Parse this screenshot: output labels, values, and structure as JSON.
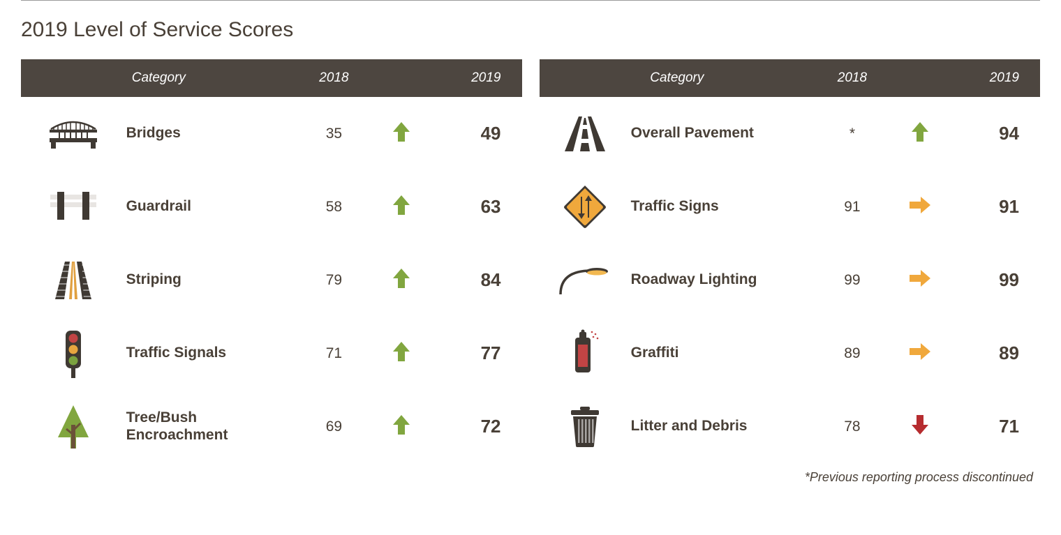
{
  "title": "2019 Level of Service Scores",
  "headers": {
    "category": "Category",
    "year1": "2018",
    "year2": "2019"
  },
  "colors": {
    "header_bg": "#4d4640",
    "header_text": "#ffffff",
    "text": "#494037",
    "up": "#81a63f",
    "flat": "#f0a83c",
    "down": "#b62c2f"
  },
  "left": [
    {
      "icon": "bridge",
      "name": "Bridges",
      "v1": "35",
      "trend": "up",
      "v2": "49"
    },
    {
      "icon": "guardrail",
      "name": "Guardrail",
      "v1": "58",
      "trend": "up",
      "v2": "63"
    },
    {
      "icon": "striping",
      "name": "Striping",
      "v1": "79",
      "trend": "up",
      "v2": "84"
    },
    {
      "icon": "signals",
      "name": "Traffic Signals",
      "v1": "71",
      "trend": "up",
      "v2": "77"
    },
    {
      "icon": "tree",
      "name": "Tree/Bush\nEncroachment",
      "v1": "69",
      "trend": "up",
      "v2": "72"
    }
  ],
  "right": [
    {
      "icon": "pavement",
      "name": "Overall Pavement",
      "v1": "*",
      "trend": "up",
      "v2": "94"
    },
    {
      "icon": "signs",
      "name": "Traffic Signs",
      "v1": "91",
      "trend": "flat",
      "v2": "91"
    },
    {
      "icon": "light",
      "name": "Roadway Lighting",
      "v1": "99",
      "trend": "flat",
      "v2": "99"
    },
    {
      "icon": "graffiti",
      "name": "Graffiti",
      "v1": "89",
      "trend": "flat",
      "v2": "89"
    },
    {
      "icon": "trash",
      "name": "Litter and Debris",
      "v1": "78",
      "trend": "down",
      "v2": "71"
    }
  ],
  "footnote": "*Previous reporting process discontinued"
}
